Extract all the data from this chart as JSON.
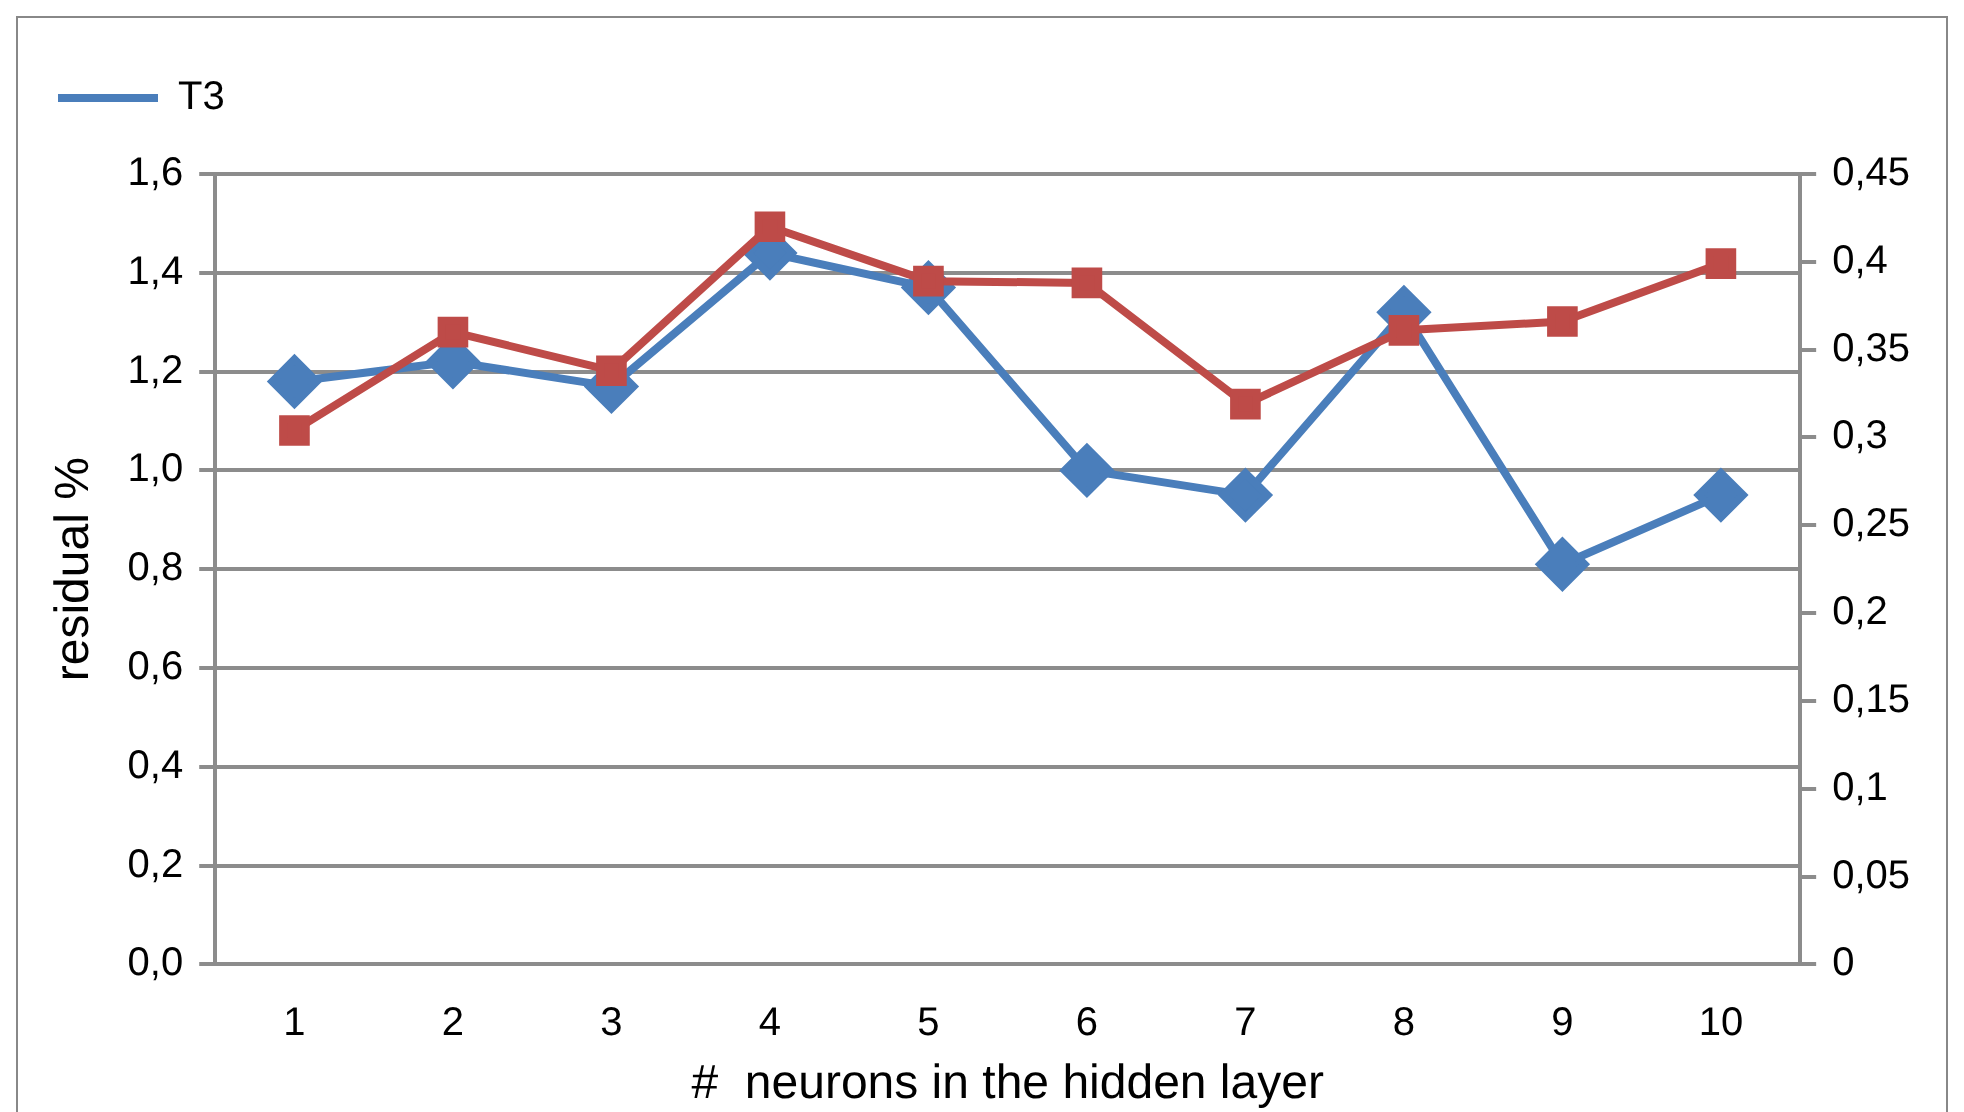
{
  "chart_data": {
    "type": "line",
    "xlabel": "#  neurons in the hidden layer",
    "ylabel": "residual %",
    "categories": [
      "1",
      "2",
      "3",
      "4",
      "5",
      "6",
      "7",
      "8",
      "9",
      "10"
    ],
    "series": [
      {
        "name": "T3",
        "color": "#4a7ebb",
        "marker": "diamond",
        "values": [
          1.18,
          1.22,
          1.17,
          1.44,
          1.37,
          1.0,
          0.95,
          1.32,
          0.81,
          0.95
        ]
      },
      {
        "color": "#be4b48",
        "marker": "square",
        "axis": "y2",
        "values": [
          0.304,
          0.36,
          0.338,
          0.42,
          0.389,
          0.388,
          0.319,
          0.361,
          0.366,
          0.399
        ]
      }
    ],
    "ylim": [
      0,
      1.6
    ],
    "yticks": [
      {
        "value": 0,
        "label": "0,0"
      },
      {
        "value": 0.2,
        "label": "0,2"
      },
      {
        "value": 0.4,
        "label": "0,4"
      },
      {
        "value": 0.6,
        "label": "0,6"
      },
      {
        "value": 0.8,
        "label": "0,8"
      },
      {
        "value": 1.0,
        "label": "1,0"
      },
      {
        "value": 1.2,
        "label": "1,2"
      },
      {
        "value": 1.4,
        "label": "1,4"
      },
      {
        "value": 1.6,
        "label": "1,6"
      }
    ],
    "y2lim": [
      0,
      0.45
    ],
    "y2ticks": [
      0,
      {
        "value": 0.05,
        "label": "0,05"
      },
      {
        "value": 0.1,
        "label": "0,1"
      },
      {
        "value": 0.15,
        "label": "0,15"
      },
      {
        "value": 0.2,
        "label": "0,2"
      },
      {
        "value": 0.25,
        "label": "0,25"
      },
      {
        "value": 0.3,
        "label": "0,3"
      },
      {
        "value": 0.35,
        "label": "0,35"
      },
      {
        "value": 0.4,
        "label": "0,4"
      },
      {
        "value": 0.45,
        "label": "0,45"
      }
    ],
    "grid": "y",
    "legend": "top left",
    "line_style": "solid"
  }
}
